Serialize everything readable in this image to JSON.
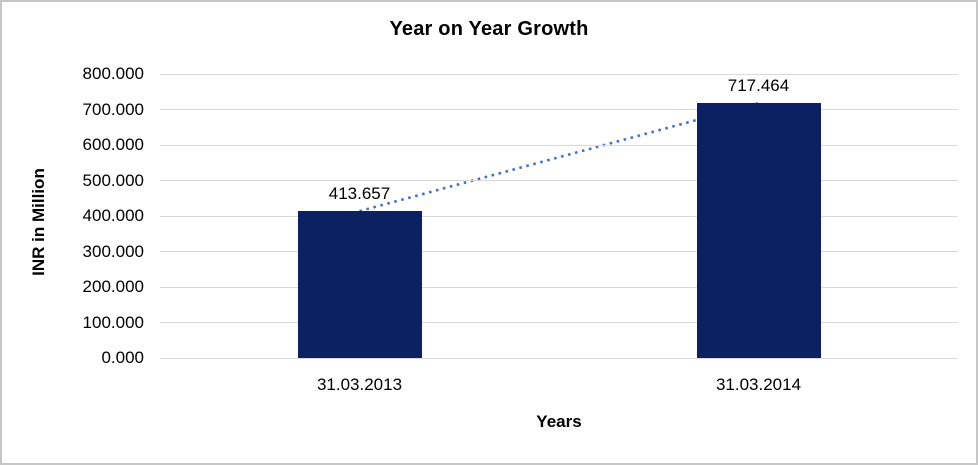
{
  "chart": {
    "title": "Year on Year Growth",
    "y_axis_title": "INR in Million",
    "x_axis_title": "Years"
  },
  "chart_data": {
    "type": "bar",
    "title": "Year on Year Growth",
    "categories": [
      "31.03.2013",
      "31.03.2014"
    ],
    "values": [
      413.657,
      717.464
    ],
    "data_labels": [
      "413.657",
      "717.464"
    ],
    "xlabel": "Years",
    "ylabel": "INR in Million",
    "ylim": [
      0,
      800
    ],
    "ytick_step": 100,
    "ytick_labels": [
      "0.000",
      "100.000",
      "200.000",
      "300.000",
      "400.000",
      "500.000",
      "600.000",
      "700.000",
      "800.000"
    ],
    "grid": true,
    "legend_position": "none",
    "colors": {
      "bar": "#0b2161",
      "trendline": "#4472c4",
      "gridline": "#d9d9d9",
      "text": "#000000",
      "frame_border": "#c6c6c6"
    },
    "trendline": {
      "style": "dotted",
      "connects": "bar tops from 31.03.2013 to 31.03.2014"
    }
  }
}
